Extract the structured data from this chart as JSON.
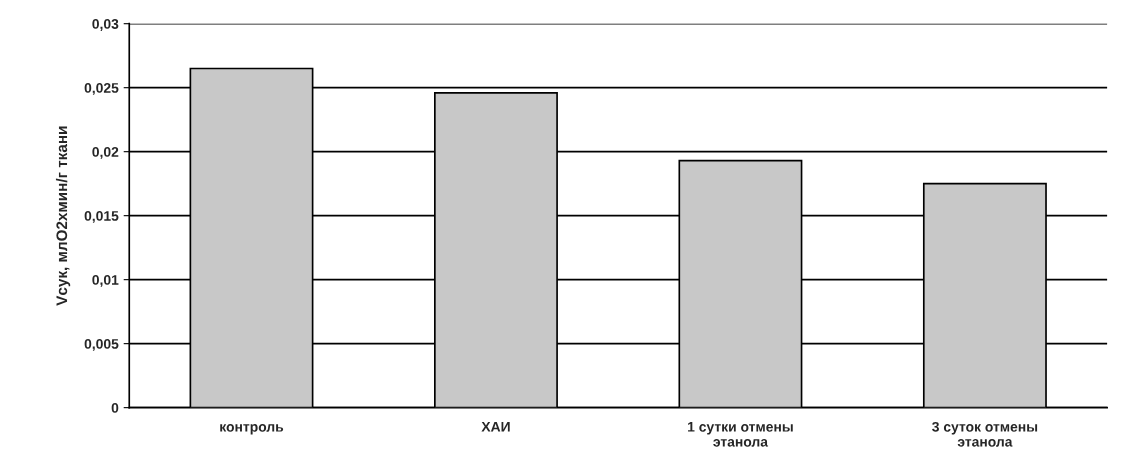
{
  "chart_data": {
    "type": "bar",
    "ylabel": "Vсук, млО2хмин/г ткани",
    "categories": [
      "контроль",
      "ХАИ",
      "1 сутки отмены\nэтанола",
      "3 суток отмены\nэтанола"
    ],
    "values": [
      0.0265,
      0.0246,
      0.0193,
      0.0175
    ],
    "color": "#c8c8c8",
    "ylim": [
      0,
      0.03
    ],
    "yticks": [
      {
        "value": 0,
        "label": "0"
      },
      {
        "value": 0.005,
        "label": "0,005"
      },
      {
        "value": 0.01,
        "label": "0,01"
      },
      {
        "value": 0.015,
        "label": "0,015"
      },
      {
        "value": 0.02,
        "label": "0,02"
      },
      {
        "value": 0.025,
        "label": "0,025"
      },
      {
        "value": 0.03,
        "label": "0,03"
      }
    ],
    "grid": "y"
  }
}
